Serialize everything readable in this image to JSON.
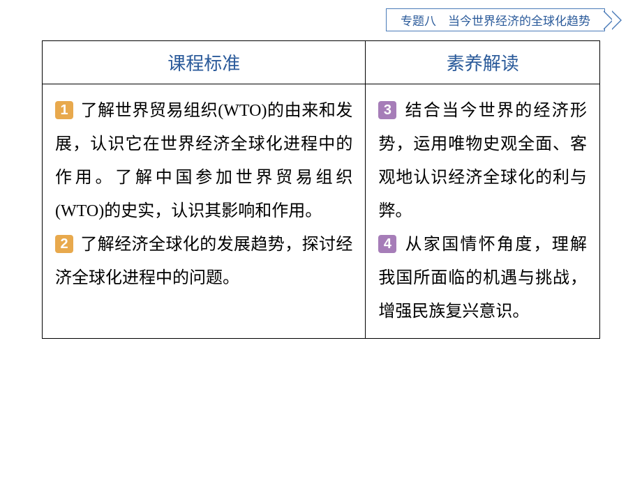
{
  "banner": {
    "text": "专题八　当今世界经济的全球化趋势",
    "text_color": "#2a5a9a",
    "border_color": "#4a7bb8",
    "arrow_color": "#4a7bb8"
  },
  "table": {
    "headers": {
      "left": "课程标准",
      "right": "素养解读",
      "color": "#2a5a9a",
      "fontsize": 26
    },
    "body_fontsize": 24,
    "body_line_height": 2.0,
    "border_color": "#000000",
    "left_items": [
      {
        "num": "1",
        "num_bg": "#e8a94d",
        "text": "了解世界贸易组织(WTO)的由来和发展，认识它在世界经济全球化进程中的作用。了解中国参加世界贸易组织(WTO)的史实，认识其影响和作用。"
      },
      {
        "num": "2",
        "num_bg": "#e8a94d",
        "text": "了解经济全球化的发展趋势，探讨经济全球化进程中的问题。"
      }
    ],
    "right_items": [
      {
        "num": "3",
        "num_bg": "#a67db8",
        "text": "结合当今世界的经济形势，运用唯物史观全面、客观地认识经济全球化的利与弊。"
      },
      {
        "num": "4",
        "num_bg": "#a67db8",
        "text": "从家国情怀角度，理解我国所面临的机遇与挑战，增强民族复兴意识。"
      }
    ]
  },
  "colors": {
    "background": "#ffffff",
    "text": "#000000"
  }
}
